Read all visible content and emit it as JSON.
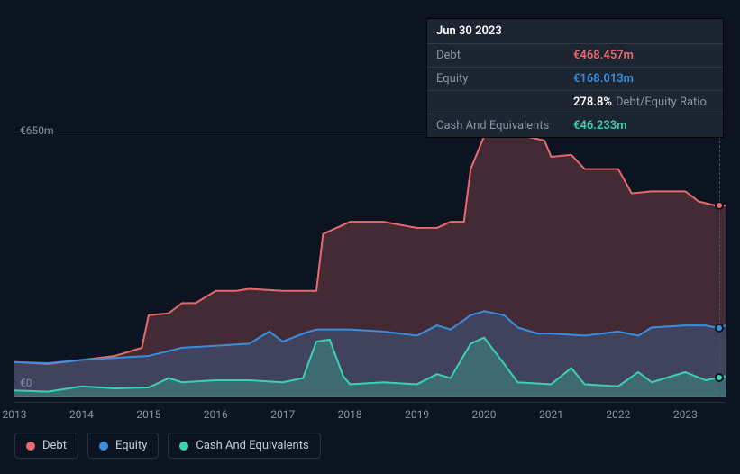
{
  "tooltip": {
    "date": "Jun 30 2023",
    "rows": [
      {
        "label": "Debt",
        "value": "€468.457m",
        "cls": "debt"
      },
      {
        "label": "Equity",
        "value": "€168.013m",
        "cls": "equity"
      },
      {
        "label": "",
        "ratio_val": "278.8%",
        "ratio_label": "Debt/Equity Ratio"
      },
      {
        "label": "Cash And Equivalents",
        "value": "€46.233m",
        "cls": "cash"
      }
    ]
  },
  "chart": {
    "type": "area",
    "background": "#0d1421",
    "grid_color": "#2a3240",
    "y_max_label": "€650m",
    "y_zero_label": "€0",
    "ylim": [
      0,
      650
    ],
    "x_years": [
      "2013",
      "2014",
      "2015",
      "2016",
      "2017",
      "2018",
      "2019",
      "2020",
      "2021",
      "2022",
      "2023"
    ],
    "x_domain": [
      2013,
      2023.6
    ],
    "crosshair_x": 2023.5,
    "series": [
      {
        "name": "Debt",
        "stroke": "#e86a6e",
        "fill": "rgba(232,106,110,0.25)",
        "stroke_width": 2,
        "points": [
          [
            2013.0,
            85
          ],
          [
            2013.5,
            80
          ],
          [
            2014.0,
            90
          ],
          [
            2014.5,
            100
          ],
          [
            2014.9,
            120
          ],
          [
            2015.0,
            200
          ],
          [
            2015.3,
            205
          ],
          [
            2015.5,
            230
          ],
          [
            2015.7,
            230
          ],
          [
            2016.0,
            260
          ],
          [
            2016.3,
            260
          ],
          [
            2016.5,
            265
          ],
          [
            2017.0,
            260
          ],
          [
            2017.3,
            260
          ],
          [
            2017.5,
            260
          ],
          [
            2017.6,
            400
          ],
          [
            2018.0,
            430
          ],
          [
            2018.5,
            430
          ],
          [
            2019.0,
            415
          ],
          [
            2019.3,
            415
          ],
          [
            2019.5,
            430
          ],
          [
            2019.7,
            430
          ],
          [
            2019.8,
            560
          ],
          [
            2020.0,
            640
          ],
          [
            2020.5,
            645
          ],
          [
            2020.9,
            630
          ],
          [
            2021.0,
            590
          ],
          [
            2021.3,
            595
          ],
          [
            2021.5,
            560
          ],
          [
            2022.0,
            560
          ],
          [
            2022.2,
            500
          ],
          [
            2022.5,
            505
          ],
          [
            2023.0,
            505
          ],
          [
            2023.2,
            480
          ],
          [
            2023.5,
            468
          ],
          [
            2023.6,
            470
          ]
        ]
      },
      {
        "name": "Equity",
        "stroke": "#3a8fdd",
        "fill": "rgba(58,143,221,0.25)",
        "stroke_width": 2,
        "points": [
          [
            2013.0,
            85
          ],
          [
            2013.5,
            82
          ],
          [
            2014.0,
            90
          ],
          [
            2014.5,
            95
          ],
          [
            2015.0,
            100
          ],
          [
            2015.5,
            120
          ],
          [
            2016.0,
            125
          ],
          [
            2016.5,
            130
          ],
          [
            2016.8,
            160
          ],
          [
            2017.0,
            135
          ],
          [
            2017.3,
            155
          ],
          [
            2017.5,
            165
          ],
          [
            2018.0,
            165
          ],
          [
            2018.5,
            160
          ],
          [
            2019.0,
            150
          ],
          [
            2019.3,
            175
          ],
          [
            2019.5,
            165
          ],
          [
            2019.8,
            200
          ],
          [
            2020.0,
            210
          ],
          [
            2020.3,
            200
          ],
          [
            2020.5,
            170
          ],
          [
            2020.8,
            155
          ],
          [
            2021.0,
            155
          ],
          [
            2021.5,
            150
          ],
          [
            2022.0,
            160
          ],
          [
            2022.3,
            150
          ],
          [
            2022.5,
            170
          ],
          [
            2023.0,
            175
          ],
          [
            2023.3,
            175
          ],
          [
            2023.5,
            168
          ],
          [
            2023.6,
            175
          ]
        ]
      },
      {
        "name": "Cash And Equivalents",
        "stroke": "#3ad2b0",
        "fill": "rgba(58,210,176,0.28)",
        "stroke_width": 2,
        "points": [
          [
            2013.0,
            15
          ],
          [
            2013.5,
            12
          ],
          [
            2014.0,
            25
          ],
          [
            2014.5,
            20
          ],
          [
            2015.0,
            22
          ],
          [
            2015.3,
            45
          ],
          [
            2015.5,
            35
          ],
          [
            2016.0,
            40
          ],
          [
            2016.5,
            40
          ],
          [
            2017.0,
            35
          ],
          [
            2017.3,
            45
          ],
          [
            2017.5,
            135
          ],
          [
            2017.7,
            140
          ],
          [
            2017.9,
            50
          ],
          [
            2018.0,
            30
          ],
          [
            2018.5,
            35
          ],
          [
            2019.0,
            30
          ],
          [
            2019.3,
            55
          ],
          [
            2019.5,
            45
          ],
          [
            2019.8,
            130
          ],
          [
            2020.0,
            145
          ],
          [
            2020.3,
            80
          ],
          [
            2020.5,
            35
          ],
          [
            2021.0,
            30
          ],
          [
            2021.3,
            70
          ],
          [
            2021.5,
            30
          ],
          [
            2022.0,
            25
          ],
          [
            2022.3,
            60
          ],
          [
            2022.5,
            35
          ],
          [
            2023.0,
            60
          ],
          [
            2023.3,
            40
          ],
          [
            2023.5,
            46
          ],
          [
            2023.6,
            50
          ]
        ]
      }
    ],
    "legend": [
      {
        "label": "Debt",
        "color": "#e86a6e"
      },
      {
        "label": "Equity",
        "color": "#3a8fdd"
      },
      {
        "label": "Cash And Equivalents",
        "color": "#3ad2b0"
      }
    ]
  }
}
